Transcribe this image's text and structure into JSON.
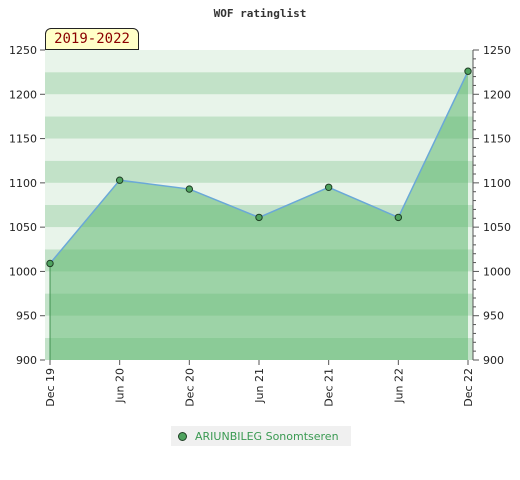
{
  "chart_data": {
    "type": "area",
    "title": "WOF ratinglist",
    "badge": "2019-2022",
    "x": [
      "Dec 19",
      "Jun 20",
      "Dec 20",
      "Jun 21",
      "Dec 21",
      "Jun 22",
      "Dec 22"
    ],
    "series": [
      {
        "name": "ARIUNBILEG Sonomtseren",
        "values": [
          1009,
          1103,
          1093,
          1061,
          1095,
          1061,
          1226
        ]
      }
    ],
    "ylim": [
      900,
      1250
    ],
    "yticks": [
      900,
      950,
      1000,
      1050,
      1100,
      1150,
      1200,
      1250
    ],
    "xlabel": "",
    "ylabel": "",
    "legend_position": "bottom",
    "colors": {
      "area": "#5fb870",
      "line": "#6aa8d8",
      "marker": "#4fa35f",
      "band_light": "#e8f4ea",
      "band_dark": "#c2e2c8"
    }
  }
}
